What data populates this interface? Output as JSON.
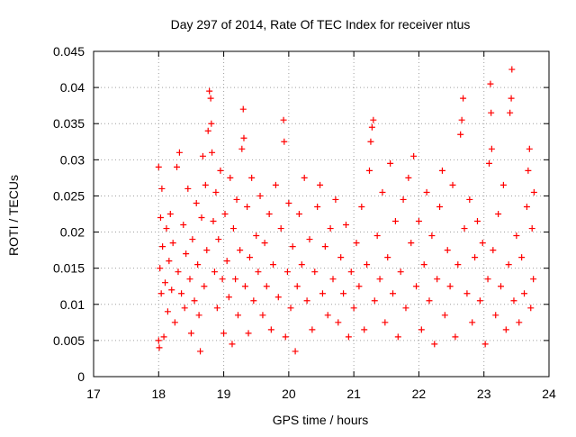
{
  "chart_data": {
    "type": "scatter",
    "title": "Day 297 of 2014, Rate Of TEC Index for receiver ntus",
    "xlabel": "GPS time / hours",
    "ylabel": "ROTI / TECUs",
    "xlim": [
      17,
      24
    ],
    "ylim": [
      0,
      0.045
    ],
    "x_ticks": [
      17,
      18,
      19,
      20,
      21,
      22,
      23,
      24
    ],
    "x_tick_labels": [
      "17",
      "18",
      "19",
      "20",
      "21",
      "22",
      "23",
      "24"
    ],
    "y_ticks": [
      0,
      0.005,
      0.01,
      0.015,
      0.02,
      0.025,
      0.03,
      0.035,
      0.04,
      0.045
    ],
    "y_tick_labels": [
      "0",
      "0.005",
      "0.01",
      "0.015",
      "0.02",
      "0.025",
      "0.03",
      "0.035",
      "0.04",
      "0.045"
    ],
    "grid": true,
    "marker": "+",
    "marker_color": "#ff0000",
    "series": [
      {
        "points": [
          [
            18.0,
            0.029
          ],
          [
            18.0,
            0.005
          ],
          [
            18.01,
            0.004
          ],
          [
            18.02,
            0.015
          ],
          [
            18.03,
            0.022
          ],
          [
            18.04,
            0.0115
          ],
          [
            18.05,
            0.026
          ],
          [
            18.06,
            0.018
          ],
          [
            18.08,
            0.0055
          ],
          [
            18.1,
            0.013
          ],
          [
            18.12,
            0.0205
          ],
          [
            18.14,
            0.009
          ],
          [
            18.16,
            0.016
          ],
          [
            18.18,
            0.0225
          ],
          [
            18.2,
            0.012
          ],
          [
            18.22,
            0.0185
          ],
          [
            18.25,
            0.0075
          ],
          [
            18.28,
            0.029
          ],
          [
            18.3,
            0.0145
          ],
          [
            18.32,
            0.031
          ],
          [
            18.35,
            0.0115
          ],
          [
            18.38,
            0.021
          ],
          [
            18.4,
            0.0095
          ],
          [
            18.42,
            0.017
          ],
          [
            18.45,
            0.026
          ],
          [
            18.48,
            0.0135
          ],
          [
            18.5,
            0.006
          ],
          [
            18.52,
            0.019
          ],
          [
            18.55,
            0.0105
          ],
          [
            18.58,
            0.024
          ],
          [
            18.6,
            0.0155
          ],
          [
            18.62,
            0.0085
          ],
          [
            18.64,
            0.0035
          ],
          [
            18.66,
            0.022
          ],
          [
            18.68,
            0.0305
          ],
          [
            18.7,
            0.0125
          ],
          [
            18.72,
            0.0265
          ],
          [
            18.74,
            0.0175
          ],
          [
            18.76,
            0.034
          ],
          [
            18.78,
            0.0395
          ],
          [
            18.8,
            0.0385
          ],
          [
            18.81,
            0.035
          ],
          [
            18.82,
            0.031
          ],
          [
            18.84,
            0.0215
          ],
          [
            18.86,
            0.0145
          ],
          [
            18.88,
            0.0255
          ],
          [
            18.9,
            0.0095
          ],
          [
            18.92,
            0.019
          ],
          [
            18.95,
            0.0285
          ],
          [
            18.98,
            0.0135
          ],
          [
            19.0,
            0.006
          ],
          [
            19.02,
            0.0225
          ],
          [
            19.05,
            0.016
          ],
          [
            19.08,
            0.011
          ],
          [
            19.1,
            0.0275
          ],
          [
            19.13,
            0.0045
          ],
          [
            19.15,
            0.0205
          ],
          [
            19.18,
            0.0135
          ],
          [
            19.2,
            0.0245
          ],
          [
            19.22,
            0.0085
          ],
          [
            19.25,
            0.0175
          ],
          [
            19.28,
            0.0315
          ],
          [
            19.3,
            0.037
          ],
          [
            19.31,
            0.033
          ],
          [
            19.33,
            0.0125
          ],
          [
            19.36,
            0.0235
          ],
          [
            19.38,
            0.006
          ],
          [
            19.4,
            0.0165
          ],
          [
            19.43,
            0.0275
          ],
          [
            19.46,
            0.0105
          ],
          [
            19.5,
            0.0195
          ],
          [
            19.53,
            0.0145
          ],
          [
            19.56,
            0.025
          ],
          [
            19.6,
            0.0085
          ],
          [
            19.63,
            0.0185
          ],
          [
            19.66,
            0.0125
          ],
          [
            19.7,
            0.0225
          ],
          [
            19.73,
            0.0065
          ],
          [
            19.76,
            0.0155
          ],
          [
            19.8,
            0.0265
          ],
          [
            19.84,
            0.011
          ],
          [
            19.88,
            0.0205
          ],
          [
            19.92,
            0.0355
          ],
          [
            19.93,
            0.0325
          ],
          [
            19.95,
            0.0055
          ],
          [
            19.98,
            0.0145
          ],
          [
            20.0,
            0.024
          ],
          [
            20.03,
            0.0095
          ],
          [
            20.06,
            0.018
          ],
          [
            20.1,
            0.0035
          ],
          [
            20.13,
            0.0125
          ],
          [
            20.16,
            0.0225
          ],
          [
            20.2,
            0.0155
          ],
          [
            20.24,
            0.0275
          ],
          [
            20.28,
            0.0105
          ],
          [
            20.32,
            0.019
          ],
          [
            20.36,
            0.0065
          ],
          [
            20.4,
            0.0145
          ],
          [
            20.44,
            0.0235
          ],
          [
            20.48,
            0.0265
          ],
          [
            20.52,
            0.0115
          ],
          [
            20.56,
            0.018
          ],
          [
            20.6,
            0.0085
          ],
          [
            20.64,
            0.0205
          ],
          [
            20.68,
            0.0135
          ],
          [
            20.72,
            0.0245
          ],
          [
            20.76,
            0.0075
          ],
          [
            20.8,
            0.0165
          ],
          [
            20.84,
            0.0115
          ],
          [
            20.88,
            0.021
          ],
          [
            20.92,
            0.0055
          ],
          [
            20.96,
            0.0145
          ],
          [
            21.0,
            0.0095
          ],
          [
            21.04,
            0.0185
          ],
          [
            21.08,
            0.0125
          ],
          [
            21.12,
            0.0235
          ],
          [
            21.16,
            0.0065
          ],
          [
            21.2,
            0.0155
          ],
          [
            21.24,
            0.0285
          ],
          [
            21.26,
            0.0325
          ],
          [
            21.28,
            0.0345
          ],
          [
            21.3,
            0.0355
          ],
          [
            21.32,
            0.0105
          ],
          [
            21.36,
            0.0195
          ],
          [
            21.4,
            0.0135
          ],
          [
            21.44,
            0.0255
          ],
          [
            21.48,
            0.0075
          ],
          [
            21.52,
            0.0165
          ],
          [
            21.56,
            0.0295
          ],
          [
            21.6,
            0.0115
          ],
          [
            21.64,
            0.0215
          ],
          [
            21.68,
            0.0055
          ],
          [
            21.72,
            0.0145
          ],
          [
            21.76,
            0.0245
          ],
          [
            21.8,
            0.0095
          ],
          [
            21.84,
            0.0275
          ],
          [
            21.88,
            0.0185
          ],
          [
            21.92,
            0.0305
          ],
          [
            21.96,
            0.0125
          ],
          [
            22.0,
            0.0215
          ],
          [
            22.04,
            0.0065
          ],
          [
            22.08,
            0.0155
          ],
          [
            22.12,
            0.0255
          ],
          [
            22.16,
            0.0105
          ],
          [
            22.2,
            0.0195
          ],
          [
            22.24,
            0.0045
          ],
          [
            22.28,
            0.0135
          ],
          [
            22.32,
            0.0235
          ],
          [
            22.36,
            0.0285
          ],
          [
            22.4,
            0.0085
          ],
          [
            22.44,
            0.0175
          ],
          [
            22.48,
            0.0125
          ],
          [
            22.52,
            0.0265
          ],
          [
            22.56,
            0.0055
          ],
          [
            22.6,
            0.0155
          ],
          [
            22.64,
            0.0335
          ],
          [
            22.66,
            0.0355
          ],
          [
            22.68,
            0.0385
          ],
          [
            22.7,
            0.0205
          ],
          [
            22.74,
            0.0115
          ],
          [
            22.78,
            0.0245
          ],
          [
            22.82,
            0.0075
          ],
          [
            22.86,
            0.0165
          ],
          [
            22.9,
            0.0215
          ],
          [
            22.94,
            0.0105
          ],
          [
            22.98,
            0.0185
          ],
          [
            23.02,
            0.0045
          ],
          [
            23.06,
            0.0135
          ],
          [
            23.08,
            0.0295
          ],
          [
            23.1,
            0.0405
          ],
          [
            23.11,
            0.0365
          ],
          [
            23.12,
            0.0315
          ],
          [
            23.14,
            0.0175
          ],
          [
            23.18,
            0.0085
          ],
          [
            23.22,
            0.0225
          ],
          [
            23.26,
            0.0125
          ],
          [
            23.3,
            0.0265
          ],
          [
            23.34,
            0.0065
          ],
          [
            23.38,
            0.0155
          ],
          [
            23.4,
            0.0365
          ],
          [
            23.42,
            0.0385
          ],
          [
            23.43,
            0.0425
          ],
          [
            23.46,
            0.0105
          ],
          [
            23.5,
            0.0195
          ],
          [
            23.54,
            0.0075
          ],
          [
            23.58,
            0.0165
          ],
          [
            23.62,
            0.0115
          ],
          [
            23.66,
            0.0235
          ],
          [
            23.68,
            0.0285
          ],
          [
            23.7,
            0.0315
          ],
          [
            23.72,
            0.0095
          ],
          [
            23.74,
            0.0205
          ],
          [
            23.76,
            0.0135
          ],
          [
            23.77,
            0.0255
          ]
        ]
      }
    ]
  }
}
